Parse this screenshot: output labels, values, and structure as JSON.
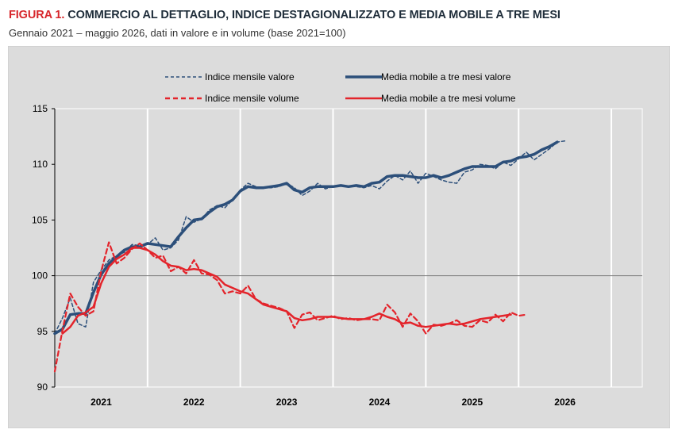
{
  "header": {
    "figure_label": "FIGURA 1.",
    "title": "COMMERCIO AL DETTAGLIO, INDICE DESTAGIONALIZZATO E MEDIA MOBILE A TRE MESI",
    "subtitle": "Gennaio 2021 – maggio 2026, dati in valore e in volume (base 2021=100)"
  },
  "colors": {
    "blue": "#2c4f7a",
    "red": "#e3242b",
    "background": "#dcdcdc",
    "baseline": "#7f7f7f"
  },
  "chart_data": {
    "type": "line",
    "title": "COMMERCIO AL DETTAGLIO, INDICE DESTAGIONALIZZATO E MEDIA MOBILE A TRE MESI",
    "ylim": [
      90,
      115
    ],
    "yticks": [
      90,
      95,
      100,
      105,
      110,
      115
    ],
    "reference_line": 100,
    "x_start": "2020-07",
    "x_end": "2026-11",
    "x_labels": [
      "2021",
      "2022",
      "2023",
      "2024",
      "2025",
      "2026"
    ],
    "grid": true,
    "legend_position": "top",
    "months": [
      "2020-07",
      "2020-08",
      "2020-09",
      "2020-10",
      "2020-11",
      "2020-12",
      "2021-01",
      "2021-02",
      "2021-03",
      "2021-04",
      "2021-05",
      "2021-06",
      "2021-07",
      "2021-08",
      "2021-09",
      "2021-10",
      "2021-11",
      "2021-12",
      "2022-01",
      "2022-02",
      "2022-03",
      "2022-04",
      "2022-05",
      "2022-06",
      "2022-07",
      "2022-08",
      "2022-09",
      "2022-10",
      "2022-11",
      "2022-12",
      "2023-01",
      "2023-02",
      "2023-03",
      "2023-04",
      "2023-05",
      "2023-06",
      "2023-07",
      "2023-08",
      "2023-09",
      "2023-10",
      "2023-11",
      "2023-12",
      "2024-01",
      "2024-02",
      "2024-03",
      "2024-04",
      "2024-05",
      "2024-06",
      "2024-07",
      "2024-08",
      "2024-09",
      "2024-10",
      "2024-11",
      "2024-12",
      "2025-01",
      "2025-02",
      "2025-03",
      "2025-04",
      "2025-05",
      "2025-06",
      "2025-07",
      "2025-08",
      "2025-09",
      "2025-10",
      "2025-11",
      "2025-12",
      "2026-01",
      "2026-02",
      "2026-03",
      "2026-04",
      "2026-05"
    ],
    "series": [
      {
        "name": "Indice mensile valore",
        "color": "#2c4f7a",
        "style": "dashed-thin",
        "values": [
          94.8,
          96.2,
          98.0,
          95.7,
          95.4,
          99.4,
          100.5,
          101.4,
          101.8,
          102.1,
          102.8,
          102.7,
          102.8,
          103.4,
          102.3,
          102.5,
          103.2,
          105.3,
          104.8,
          105.1,
          105.9,
          106.3,
          106.1,
          106.8,
          107.7,
          108.3,
          108.0,
          107.9,
          107.9,
          108.0,
          108.3,
          107.9,
          107.2,
          107.6,
          108.3,
          107.8,
          108.0,
          108.1,
          108.0,
          108.0,
          107.9,
          108.1,
          107.8,
          108.5,
          109.0,
          108.6,
          109.4,
          108.3,
          109.2,
          108.9,
          108.6,
          108.4,
          108.3,
          109.3,
          109.5,
          110.0,
          109.9,
          109.6,
          110.2,
          109.9,
          110.5,
          111.1,
          110.4,
          110.9,
          111.4,
          112.0,
          112.1
        ],
        "x_offset": 0
      },
      {
        "name": "Media mobile a tre mesi valore",
        "color": "#2c4f7a",
        "style": "solid-thick",
        "values": [
          94.8,
          95.2,
          96.5,
          96.6,
          96.6,
          98.5,
          100.1,
          101.1,
          101.7,
          102.3,
          102.6,
          102.6,
          102.9,
          102.8,
          102.7,
          102.6,
          103.5,
          104.3,
          105.0,
          105.1,
          105.7,
          106.2,
          106.4,
          106.8,
          107.6,
          108.0,
          107.9,
          107.9,
          108.0,
          108.1,
          108.3,
          107.7,
          107.5,
          107.9,
          108.0,
          108.0,
          108.0,
          108.1,
          108.0,
          108.1,
          108.0,
          108.3,
          108.4,
          108.9,
          109.0,
          109.0,
          108.9,
          108.8,
          108.8,
          109.0,
          108.8,
          109.0,
          109.3,
          109.6,
          109.8,
          109.8,
          109.8,
          109.8,
          110.2,
          110.3,
          110.6,
          110.7,
          110.9,
          111.3,
          111.6,
          112.0
        ],
        "x_offset": 0
      },
      {
        "name": "Indice mensile volume",
        "color": "#e3242b",
        "style": "dashed-thick",
        "values": [
          91.4,
          95.1,
          98.4,
          97.2,
          96.4,
          96.8,
          100.4,
          103.0,
          101.1,
          101.6,
          102.4,
          102.9,
          102.3,
          101.6,
          101.8,
          100.4,
          100.8,
          100.2,
          101.4,
          100.2,
          100.1,
          99.6,
          98.4,
          98.6,
          98.4,
          99.1,
          97.9,
          97.5,
          97.3,
          97.1,
          96.8,
          95.3,
          96.5,
          96.7,
          96.0,
          96.2,
          96.4,
          96.1,
          96.2,
          96.0,
          96.1,
          96.1,
          96.0,
          97.4,
          96.7,
          95.4,
          96.6,
          95.9,
          94.8,
          95.6,
          95.5,
          95.7,
          96.0,
          95.5,
          95.4,
          96.0,
          95.8,
          96.5,
          95.9,
          96.7,
          96.4,
          96.5
        ],
        "x_offset": 0
      },
      {
        "name": "Media mobile a tre mesi volume",
        "color": "#e3242b",
        "style": "solid-thick",
        "values": [
          94.8,
          95.4,
          96.4,
          96.7,
          97.2,
          99.3,
          100.8,
          101.5,
          101.9,
          102.5,
          102.5,
          102.3,
          101.9,
          101.3,
          100.9,
          100.8,
          100.5,
          100.6,
          100.5,
          100.2,
          99.9,
          99.2,
          98.9,
          98.6,
          98.4,
          97.9,
          97.4,
          97.2,
          97.0,
          96.8,
          96.2,
          96.0,
          96.1,
          96.3,
          96.3,
          96.3,
          96.2,
          96.1,
          96.1,
          96.1,
          96.3,
          96.6,
          96.3,
          96.1,
          95.7,
          95.8,
          95.5,
          95.4,
          95.5,
          95.6,
          95.7,
          95.6,
          95.7,
          95.9,
          96.1,
          96.2,
          96.3,
          96.4,
          96.5
        ],
        "x_offset": 1
      }
    ]
  },
  "legend": {
    "items": [
      {
        "label": "Indice mensile valore"
      },
      {
        "label": "Media mobile a tre mesi valore"
      },
      {
        "label": "Indice mensile volume"
      },
      {
        "label": "Media mobile a tre mesi volume"
      }
    ]
  }
}
